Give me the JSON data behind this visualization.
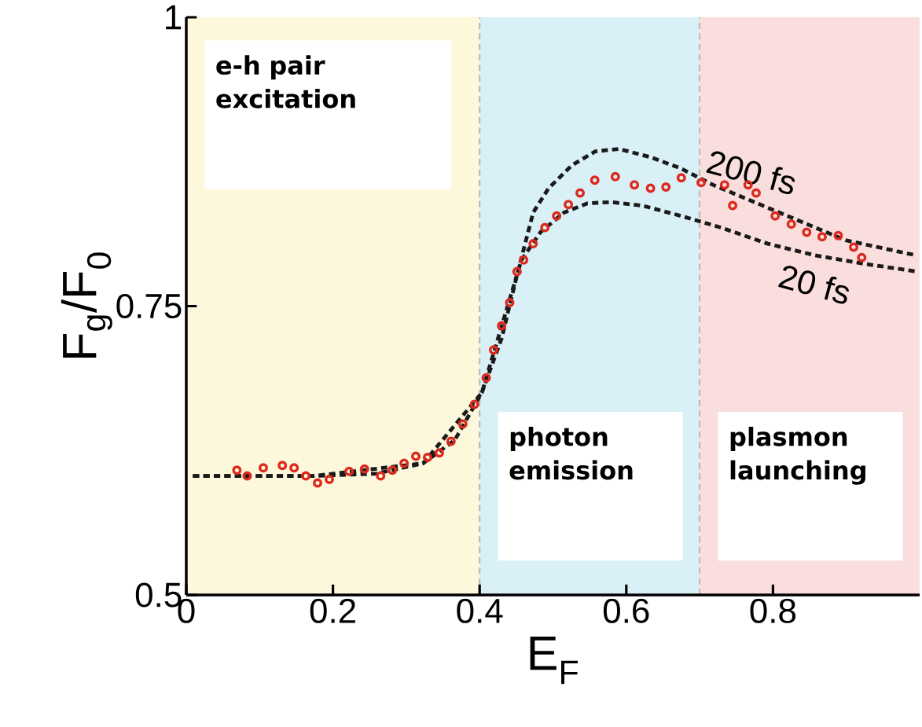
{
  "chart_data": {
    "type": "line",
    "xlabel": "E$_{F}$",
    "ylabel": "F$_{g}$/F$_{0}$",
    "xlim": [
      0,
      1
    ],
    "ylim": [
      0.5,
      1
    ],
    "xticks": [
      0,
      0.2,
      0.4,
      0.6,
      0.8
    ],
    "yticks": [
      0.5,
      0.75,
      1
    ],
    "grid": false,
    "bands": [
      {
        "axis": "x",
        "from": 0,
        "to": 0.4,
        "label": "e-h pair excitation",
        "color": "#fdf8dc"
      },
      {
        "axis": "x",
        "from": 0.4,
        "to": 0.7,
        "label": "photon emission",
        "color": "#d9f0f7"
      },
      {
        "axis": "x",
        "from": 0.7,
        "to": 1,
        "label": "plasmon launching",
        "color": "#fadede"
      }
    ],
    "ref_lines": [
      {
        "axis": "x",
        "value": 0.4,
        "color": "#bbbbbb",
        "line_style": "dashed"
      },
      {
        "axis": "x",
        "value": 0.7,
        "color": "#bbbbbb",
        "line_style": "dashed"
      }
    ],
    "series": [
      {
        "type": "scatter",
        "marker": "circle",
        "color": "#dc2a1e",
        "x": [
          0.069,
          0.083,
          0.105,
          0.131,
          0.147,
          0.163,
          0.179,
          0.195,
          0.222,
          0.243,
          0.265,
          0.281,
          0.297,
          0.313,
          0.329,
          0.345,
          0.361,
          0.377,
          0.393,
          0.409,
          0.419,
          0.43,
          0.441,
          0.451,
          0.46,
          0.473,
          0.489,
          0.505,
          0.521,
          0.537,
          0.557,
          0.585,
          0.611,
          0.633,
          0.654,
          0.675,
          0.702,
          0.734,
          0.745,
          0.766,
          0.777,
          0.803,
          0.825,
          0.846,
          0.867,
          0.889,
          0.91,
          0.921
        ],
        "values": [
          0.608,
          0.603,
          0.61,
          0.612,
          0.61,
          0.603,
          0.597,
          0.6,
          0.607,
          0.609,
          0.603,
          0.608,
          0.614,
          0.62,
          0.619,
          0.623,
          0.633,
          0.648,
          0.665,
          0.688,
          0.712,
          0.733,
          0.753,
          0.78,
          0.79,
          0.804,
          0.818,
          0.828,
          0.838,
          0.848,
          0.859,
          0.862,
          0.855,
          0.852,
          0.853,
          0.861,
          0.857,
          0.855,
          0.837,
          0.855,
          0.848,
          0.828,
          0.821,
          0.814,
          0.81,
          0.811,
          0.801,
          0.792
        ]
      },
      {
        "name": "200 fs",
        "line_style": "dashed",
        "color": "#1a1a1a",
        "x": [
          0.009,
          0.067,
          0.174,
          0.259,
          0.323,
          0.366,
          0.403,
          0.43,
          0.451,
          0.473,
          0.494,
          0.526,
          0.558,
          0.59,
          0.633,
          0.675,
          0.718,
          0.771,
          0.835,
          0.899,
          0.995
        ],
        "values": [
          0.603,
          0.603,
          0.603,
          0.605,
          0.614,
          0.634,
          0.675,
          0.722,
          0.777,
          0.831,
          0.852,
          0.872,
          0.884,
          0.886,
          0.879,
          0.869,
          0.855,
          0.841,
          0.824,
          0.807,
          0.794
        ]
      },
      {
        "name": "20 fs",
        "line_style": "dashed",
        "color": "#1a1a1a",
        "x": [
          0.009,
          0.174,
          0.323,
          0.403,
          0.441,
          0.457,
          0.483,
          0.515,
          0.547,
          0.579,
          0.622,
          0.675,
          0.729,
          0.793,
          0.857,
          0.921,
          0.995
        ],
        "values": [
          0.603,
          0.603,
          0.614,
          0.675,
          0.756,
          0.79,
          0.814,
          0.831,
          0.839,
          0.84,
          0.837,
          0.828,
          0.818,
          0.804,
          0.794,
          0.787,
          0.78
        ]
      }
    ]
  }
}
